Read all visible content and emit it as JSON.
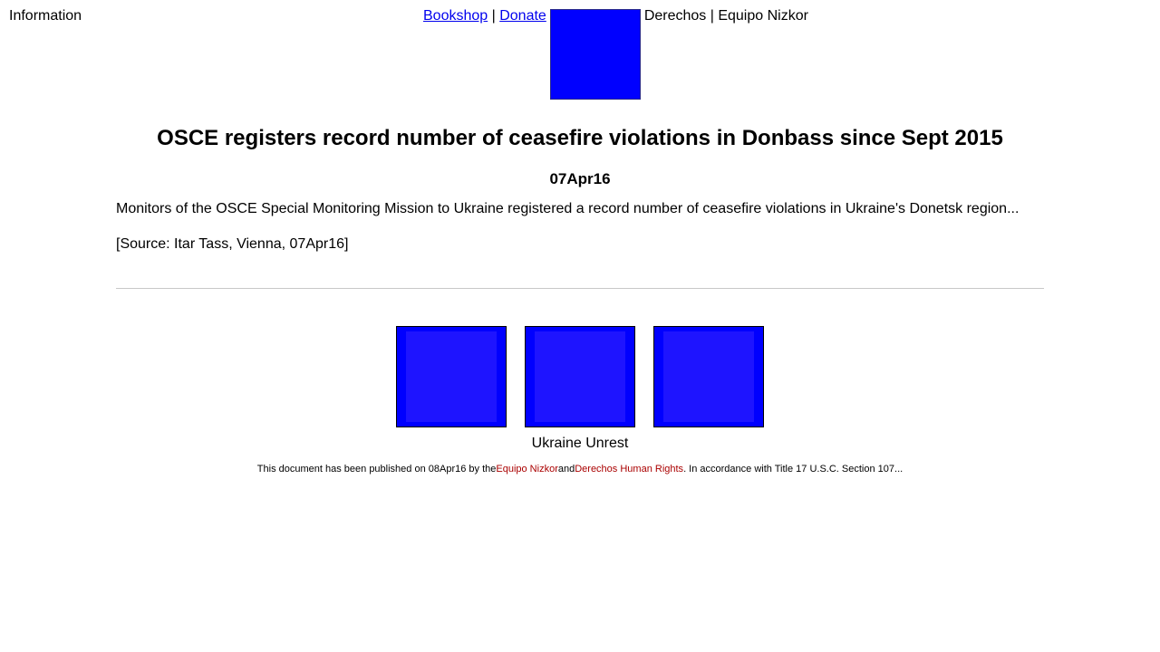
{
  "header": {
    "info_label": "Information",
    "nav": {
      "bookshop": "Bookshop",
      "sep1": " | ",
      "donate": "Donate",
      "after_logo": "Derechos | Equipo Nizkor"
    },
    "logo_color": "#0000ff"
  },
  "article": {
    "headline": "OSCE registers record number of ceasefire violations in Donbass since Sept 2015",
    "date": "07Apr16",
    "summary": "Monitors of the OSCE Special Monitoring Mission to Ukraine registered a record number of ceasefire violations in Ukraine's Donetsk region...",
    "source": "[Source: Itar Tass, Vienna, 07Apr16]"
  },
  "gallery": {
    "caption": "Ukraine Unrest"
  },
  "footer": {
    "prefix": "This document has been published on 08Apr16 by the",
    "link1": "Equipo Nizkor",
    "middle": "and",
    "link2": "Derechos Human Rights",
    "suffix": ". In accordance with Title 17 U.S.C. Section 107...",
    "link_color": "#aa0000"
  }
}
